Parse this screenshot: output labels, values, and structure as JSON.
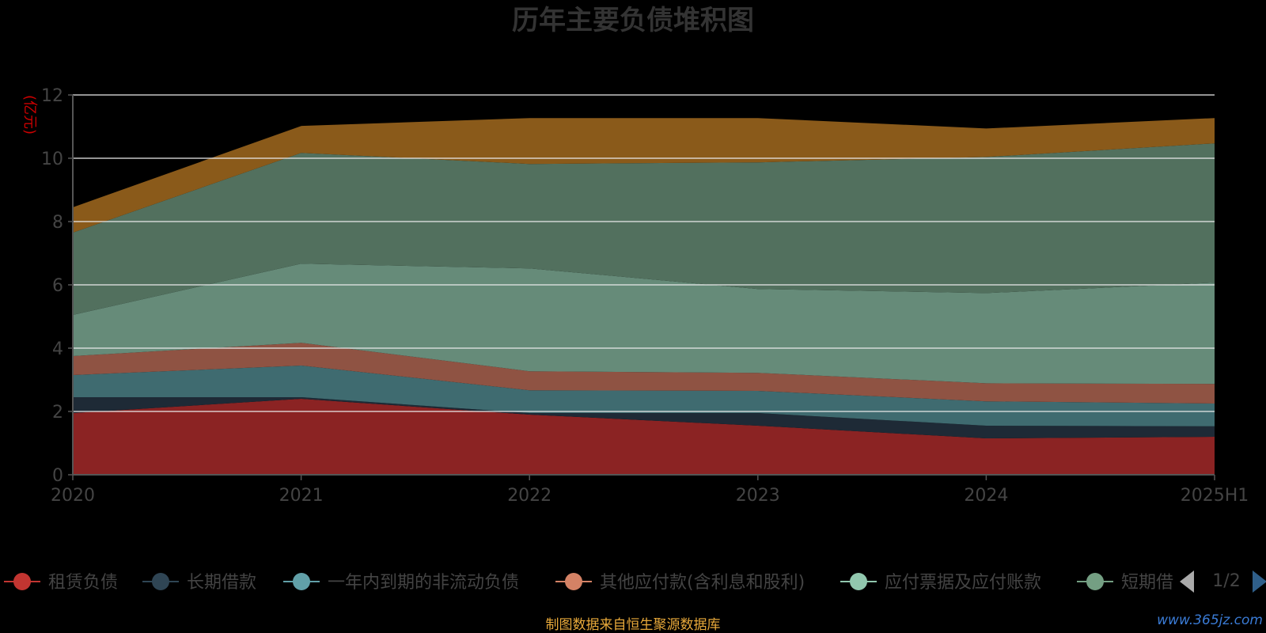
{
  "chart_data": {
    "type": "area",
    "title": "历年主要负债堆积图",
    "ylabel": "(亿元)",
    "x": [
      "2020",
      "2021",
      "2022",
      "2023",
      "2024",
      "2025H1"
    ],
    "ylim": [
      0,
      12
    ],
    "yticks": [
      0,
      2,
      4,
      6,
      8,
      10,
      12
    ],
    "series": [
      {
        "name": "租赁负债",
        "color": "#8b2323",
        "legend_color": "#c23531",
        "values": [
          1.95,
          2.4,
          1.9,
          1.55,
          1.15,
          1.2
        ]
      },
      {
        "name": "长期借款",
        "color": "#1e2a36",
        "legend_color": "#2f4554",
        "values": [
          0.5,
          0.05,
          0.05,
          0.4,
          0.4,
          0.33
        ]
      },
      {
        "name": "一年内到期的非流动负债",
        "color": "#3f6b70",
        "legend_color": "#61a0a8",
        "values": [
          0.7,
          1.0,
          0.72,
          0.7,
          0.77,
          0.72
        ]
      },
      {
        "name": "其他应付款(含利息和股利)",
        "color": "#8f5343",
        "legend_color": "#d48265",
        "values": [
          0.6,
          0.72,
          0.6,
          0.57,
          0.57,
          0.62
        ]
      },
      {
        "name": "应付票据及应付账款",
        "color": "#668b79",
        "legend_color": "#91c7ae",
        "values": [
          1.3,
          2.5,
          3.25,
          2.65,
          2.85,
          3.2
        ]
      },
      {
        "name": "短期借款",
        "color": "#52705e",
        "legend_color": "#749f83",
        "values": [
          2.6,
          3.5,
          3.3,
          4.0,
          4.3,
          4.4
        ]
      },
      {
        "name": "",
        "color": "#8a5a1a",
        "legend_color": "#ca8622",
        "values": [
          0.8,
          0.85,
          1.45,
          1.4,
          0.9,
          0.8
        ]
      }
    ]
  },
  "legend": {
    "items": [
      "租赁负债",
      "长期借款",
      "一年内到期的非流动负债",
      "其他应付款(含利息和股利)",
      "应付票据及应付账款",
      "短期借"
    ],
    "page": "1/2"
  },
  "source_note": "制图数据来自恒生聚源数据库",
  "watermark": "www.365jz.com"
}
